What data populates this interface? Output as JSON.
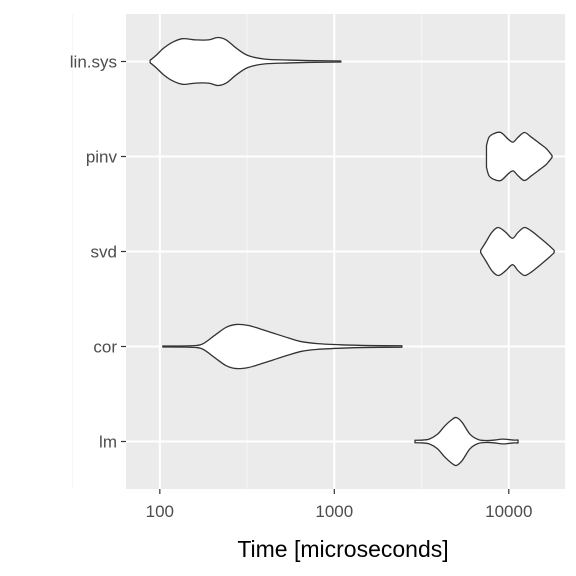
{
  "chart_data": {
    "type": "violin",
    "orientation": "horizontal",
    "xlabel": "Time [microseconds]",
    "ylabel": "",
    "x_scale": "log10",
    "xlim": [
      64,
      21000
    ],
    "x_ticks": [
      100,
      1000,
      10000
    ],
    "x_tick_labels": [
      "100",
      "1000",
      "10000"
    ],
    "grid": true,
    "legend": "none",
    "colors": {
      "panel": "#ebebeb",
      "grid_major": "#ffffff",
      "grid_minor": "#f5f5f5",
      "violin_fill": "#ffffff",
      "violin_stroke": "#333333",
      "tick_text": "#4d4d4d"
    },
    "categories": [
      "lin.sys",
      "pinv",
      "svd",
      "cor",
      "lm"
    ],
    "series": [
      {
        "category": "lin.sys",
        "min": 88,
        "max": 1090,
        "density": [
          [
            88,
            0.05
          ],
          [
            95,
            0.25
          ],
          [
            105,
            0.55
          ],
          [
            118,
            0.8
          ],
          [
            135,
            0.95
          ],
          [
            160,
            0.9
          ],
          [
            190,
            0.9
          ],
          [
            215,
            1.0
          ],
          [
            240,
            0.9
          ],
          [
            275,
            0.55
          ],
          [
            320,
            0.25
          ],
          [
            400,
            0.1
          ],
          [
            550,
            0.06
          ],
          [
            700,
            0.04
          ],
          [
            1090,
            0.02
          ]
        ]
      },
      {
        "category": "pinv",
        "min": 7450,
        "max": 17700,
        "density": [
          [
            7450,
            0.45
          ],
          [
            7700,
            0.8
          ],
          [
            8200,
            0.95
          ],
          [
            9000,
            1.0
          ],
          [
            10000,
            0.7
          ],
          [
            10600,
            0.6
          ],
          [
            11300,
            0.8
          ],
          [
            12300,
            1.0
          ],
          [
            13500,
            0.8
          ],
          [
            15000,
            0.55
          ],
          [
            16300,
            0.35
          ],
          [
            17000,
            0.2
          ],
          [
            17700,
            0.04
          ]
        ]
      },
      {
        "category": "svd",
        "min": 6900,
        "max": 18200,
        "density": [
          [
            6900,
            0.05
          ],
          [
            7400,
            0.4
          ],
          [
            8000,
            0.8
          ],
          [
            8700,
            1.0
          ],
          [
            9600,
            0.8
          ],
          [
            10500,
            0.55
          ],
          [
            11300,
            0.8
          ],
          [
            12300,
            1.0
          ],
          [
            13500,
            0.85
          ],
          [
            15200,
            0.55
          ],
          [
            17000,
            0.25
          ],
          [
            18200,
            0.05
          ]
        ]
      },
      {
        "category": "cor",
        "min": 104,
        "max": 2440,
        "density": [
          [
            104,
            0.02
          ],
          [
            150,
            0.03
          ],
          [
            175,
            0.1
          ],
          [
            205,
            0.45
          ],
          [
            240,
            0.8
          ],
          [
            275,
            0.92
          ],
          [
            320,
            0.88
          ],
          [
            370,
            0.75
          ],
          [
            450,
            0.55
          ],
          [
            550,
            0.35
          ],
          [
            650,
            0.2
          ],
          [
            800,
            0.12
          ],
          [
            1100,
            0.07
          ],
          [
            1600,
            0.04
          ],
          [
            2440,
            0.03
          ]
        ]
      },
      {
        "category": "lm",
        "min": 2900,
        "max": 11300,
        "density": [
          [
            2900,
            0.05
          ],
          [
            3200,
            0.06
          ],
          [
            3500,
            0.1
          ],
          [
            3900,
            0.3
          ],
          [
            4300,
            0.65
          ],
          [
            4700,
            0.9
          ],
          [
            5000,
            1.0
          ],
          [
            5400,
            0.8
          ],
          [
            6000,
            0.3
          ],
          [
            6700,
            0.08
          ],
          [
            7500,
            0.04
          ],
          [
            8300,
            0.06
          ],
          [
            9200,
            0.1
          ],
          [
            10000,
            0.08
          ],
          [
            10600,
            0.06
          ],
          [
            11300,
            0.06
          ]
        ]
      }
    ]
  }
}
